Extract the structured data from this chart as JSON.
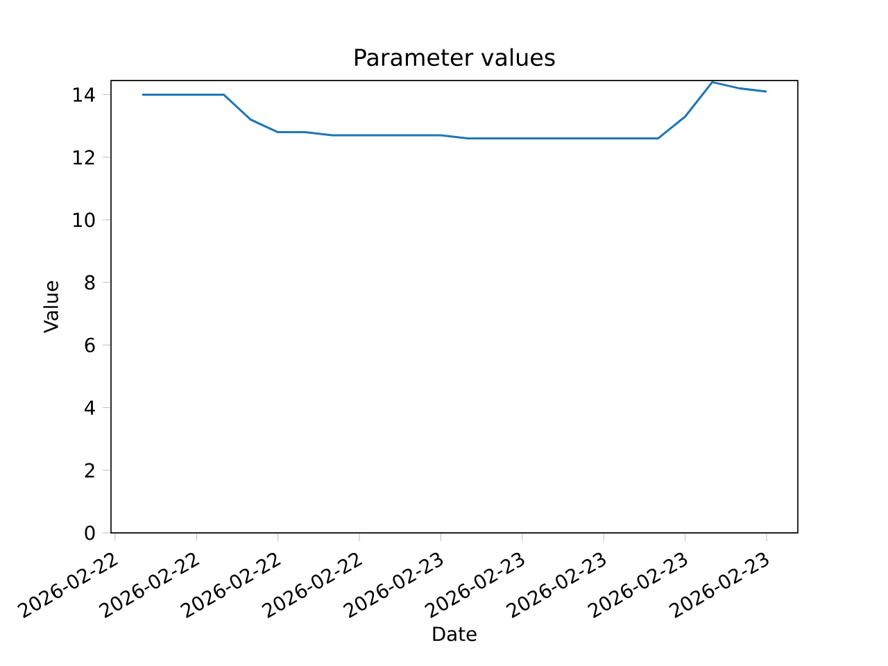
{
  "chart_data": {
    "type": "line",
    "title": "Parameter values",
    "xlabel": "Date",
    "ylabel": "Value",
    "x": [
      "2026-02-22T13:00",
      "2026-02-22T14:00",
      "2026-02-22T15:00",
      "2026-02-22T16:00",
      "2026-02-22T17:00",
      "2026-02-22T18:00",
      "2026-02-22T19:00",
      "2026-02-22T20:00",
      "2026-02-22T21:00",
      "2026-02-22T22:00",
      "2026-02-22T23:00",
      "2026-02-23T00:00",
      "2026-02-23T01:00",
      "2026-02-23T02:00",
      "2026-02-23T03:00",
      "2026-02-23T04:00",
      "2026-02-23T05:00",
      "2026-02-23T06:00",
      "2026-02-23T07:00",
      "2026-02-23T08:00",
      "2026-02-23T09:00",
      "2026-02-23T10:00",
      "2026-02-23T11:00",
      "2026-02-23T12:00"
    ],
    "series": [
      {
        "color": "#1f77b4",
        "values": [
          14.0,
          14.0,
          14.0,
          14.0,
          13.2,
          12.8,
          12.8,
          12.7,
          12.7,
          12.7,
          12.7,
          12.7,
          12.6,
          12.6,
          12.6,
          12.6,
          12.6,
          12.6,
          12.6,
          12.6,
          13.3,
          14.4,
          14.2,
          14.1
        ]
      }
    ],
    "xlim": [
      "2026-02-22T11:51",
      "2026-02-23T13:09"
    ],
    "xticks": [
      {
        "value": "2026-02-22T12:00",
        "label": "2026-02-22"
      },
      {
        "value": "2026-02-22T15:00",
        "label": "2026-02-22"
      },
      {
        "value": "2026-02-22T18:00",
        "label": "2026-02-22"
      },
      {
        "value": "2026-02-22T21:00",
        "label": "2026-02-22"
      },
      {
        "value": "2026-02-23T00:00",
        "label": "2026-02-23"
      },
      {
        "value": "2026-02-23T03:00",
        "label": "2026-02-23"
      },
      {
        "value": "2026-02-23T06:00",
        "label": "2026-02-23"
      },
      {
        "value": "2026-02-23T09:00",
        "label": "2026-02-23"
      },
      {
        "value": "2026-02-23T12:00",
        "label": "2026-02-23"
      }
    ],
    "ylim": [
      0,
      14.45
    ],
    "yticks": [
      0,
      2,
      4,
      6,
      8,
      10,
      12,
      14
    ],
    "grid": false
  }
}
